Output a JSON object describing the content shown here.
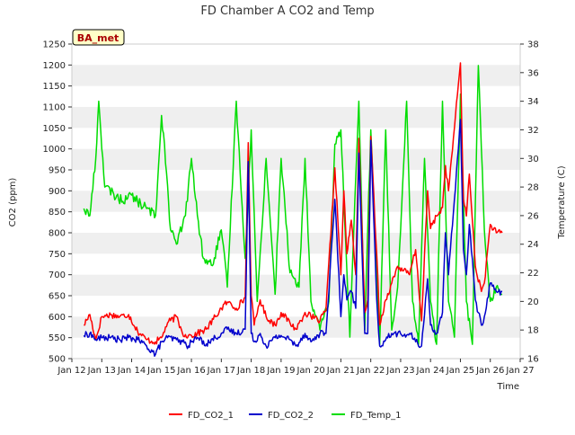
{
  "chart_data": {
    "type": "line",
    "title": "FD Chamber A CO2 and Temp",
    "xlabel": "Time",
    "ylabel_left": "CO2 (ppm)",
    "ylabel_right": "Temperature (C)",
    "xlim": [
      12,
      27
    ],
    "ylim_left": [
      500,
      1250
    ],
    "ylim_right": [
      16,
      38
    ],
    "x_ticks": [
      {
        "value": 12,
        "label": "Jan 12"
      },
      {
        "value": 13,
        "label": "Jan 13"
      },
      {
        "value": 14,
        "label": "Jan 14"
      },
      {
        "value": 15,
        "label": "Jan 15"
      },
      {
        "value": 16,
        "label": "Jan 16"
      },
      {
        "value": 17,
        "label": "Jan 17"
      },
      {
        "value": 18,
        "label": "Jan 18"
      },
      {
        "value": 19,
        "label": "Jan 19"
      },
      {
        "value": 20,
        "label": "Jan 20"
      },
      {
        "value": 21,
        "label": "Jan 21"
      },
      {
        "value": 22,
        "label": "Jan 22"
      },
      {
        "value": 23,
        "label": "Jan 23"
      },
      {
        "value": 24,
        "label": "Jan 24"
      },
      {
        "value": 25,
        "label": "Jan 25"
      },
      {
        "value": 26,
        "label": "Jan 26"
      },
      {
        "value": 27,
        "label": "Jan 27"
      }
    ],
    "y_left_ticks": [
      500,
      550,
      600,
      650,
      700,
      750,
      800,
      850,
      900,
      950,
      1000,
      1050,
      1100,
      1150,
      1200,
      1250
    ],
    "y_right_ticks": [
      16,
      18,
      20,
      22,
      24,
      26,
      28,
      30,
      32,
      34,
      36,
      38
    ],
    "grid": "horizontal bands",
    "legend_position": "bottom-center",
    "annotation": "BA_met",
    "series": [
      {
        "name": "FD_CO2_1",
        "color": "#ff0000",
        "axis": "left",
        "x": [
          12.4,
          12.6,
          12.8,
          13.0,
          13.3,
          13.6,
          13.9,
          14.2,
          14.5,
          14.8,
          15.0,
          15.2,
          15.5,
          15.7,
          15.9,
          16.0,
          16.2,
          16.5,
          16.8,
          17.0,
          17.2,
          17.5,
          17.8,
          17.9,
          18.0,
          18.1,
          18.3,
          18.5,
          18.8,
          19.0,
          19.3,
          19.5,
          19.8,
          20.0,
          20.3,
          20.5,
          20.8,
          21.0,
          21.1,
          21.2,
          21.35,
          21.5,
          21.6,
          21.8,
          21.9,
          22.0,
          22.2,
          22.3,
          22.5,
          22.7,
          22.9,
          23.1,
          23.3,
          23.5,
          23.7,
          23.9,
          24.0,
          24.2,
          24.4,
          24.5,
          24.6,
          24.8,
          25.0,
          25.1,
          25.2,
          25.3,
          25.5,
          25.7,
          25.8,
          26.0,
          26.2,
          26.4
        ],
        "y": [
          580,
          605,
          545,
          600,
          605,
          600,
          605,
          565,
          545,
          540,
          550,
          585,
          600,
          560,
          555,
          555,
          560,
          570,
          600,
          620,
          635,
          620,
          645,
          1015,
          650,
          580,
          640,
          600,
          580,
          610,
          585,
          570,
          610,
          600,
          590,
          615,
          955,
          700,
          900,
          750,
          830,
          700,
          1025,
          610,
          640,
          1030,
          750,
          580,
          640,
          680,
          720,
          710,
          700,
          760,
          590,
          900,
          810,
          840,
          860,
          960,
          900,
          1050,
          1205,
          880,
          840,
          940,
          720,
          660,
          680,
          820,
          800,
          800
        ],
        "display": "wiggly"
      },
      {
        "name": "FD_CO2_2",
        "color": "#0000cc",
        "axis": "left",
        "x": [
          12.4,
          12.6,
          12.8,
          13.0,
          13.3,
          13.6,
          13.9,
          14.2,
          14.5,
          14.8,
          15.0,
          15.2,
          15.5,
          15.7,
          15.9,
          16.0,
          16.2,
          16.5,
          16.8,
          17.0,
          17.2,
          17.5,
          17.8,
          17.9,
          18.0,
          18.1,
          18.3,
          18.5,
          18.8,
          19.0,
          19.3,
          19.5,
          19.8,
          20.0,
          20.3,
          20.5,
          20.8,
          21.0,
          21.1,
          21.2,
          21.35,
          21.5,
          21.6,
          21.8,
          21.9,
          22.0,
          22.2,
          22.3,
          22.5,
          22.7,
          22.9,
          23.1,
          23.3,
          23.5,
          23.7,
          23.9,
          24.0,
          24.2,
          24.4,
          24.5,
          24.6,
          24.8,
          25.0,
          25.1,
          25.2,
          25.3,
          25.5,
          25.7,
          25.8,
          26.0,
          26.2,
          26.4
        ],
        "y": [
          555,
          560,
          545,
          550,
          550,
          545,
          550,
          545,
          530,
          510,
          540,
          550,
          545,
          540,
          530,
          540,
          550,
          535,
          550,
          560,
          570,
          560,
          570,
          970,
          560,
          540,
          560,
          530,
          550,
          555,
          545,
          530,
          560,
          540,
          560,
          560,
          880,
          600,
          700,
          640,
          660,
          620,
          990,
          560,
          560,
          1020,
          640,
          530,
          545,
          560,
          560,
          555,
          560,
          540,
          530,
          690,
          580,
          560,
          610,
          800,
          700,
          880,
          1070,
          760,
          700,
          820,
          640,
          580,
          600,
          680,
          660,
          660
        ],
        "display": "wiggly"
      },
      {
        "name": "FD_Temp_1",
        "color": "#00dd00",
        "axis": "right",
        "x": [
          12.4,
          12.6,
          12.8,
          12.9,
          13.1,
          13.4,
          13.7,
          13.9,
          14.2,
          14.5,
          14.8,
          15.0,
          15.1,
          15.3,
          15.5,
          15.8,
          16.0,
          16.2,
          16.4,
          16.7,
          17.0,
          17.2,
          17.5,
          17.8,
          18.0,
          18.2,
          18.5,
          18.8,
          19.0,
          19.3,
          19.6,
          19.8,
          20.0,
          20.3,
          20.6,
          20.8,
          21.0,
          21.3,
          21.6,
          21.8,
          22.0,
          22.3,
          22.5,
          22.7,
          22.9,
          23.2,
          23.4,
          23.6,
          23.8,
          24.0,
          24.2,
          24.4,
          24.6,
          24.8,
          25.0,
          25.2,
          25.4,
          25.6,
          25.8,
          26.0,
          26.2,
          26.4
        ],
        "y": [
          26.5,
          26.0,
          30.0,
          34.0,
          28.0,
          27.5,
          27.0,
          27.5,
          27.0,
          26.5,
          26.0,
          33.0,
          31.0,
          25.0,
          24.0,
          26.0,
          30.0,
          26.0,
          23.0,
          22.5,
          25.0,
          21.0,
          34.0,
          23.0,
          32.0,
          20.0,
          30.0,
          20.5,
          30.0,
          22.0,
          21.0,
          30.0,
          20.0,
          18.0,
          20.0,
          31.0,
          32.0,
          17.5,
          34.0,
          18.0,
          32.0,
          17.0,
          32.0,
          18.0,
          21.0,
          34.0,
          20.0,
          17.0,
          30.0,
          20.0,
          17.0,
          34.0,
          20.0,
          17.5,
          34.5,
          20.0,
          17.0,
          36.5,
          25.0,
          20.0,
          21.0,
          20.5
        ],
        "display": "wiggly"
      }
    ]
  }
}
